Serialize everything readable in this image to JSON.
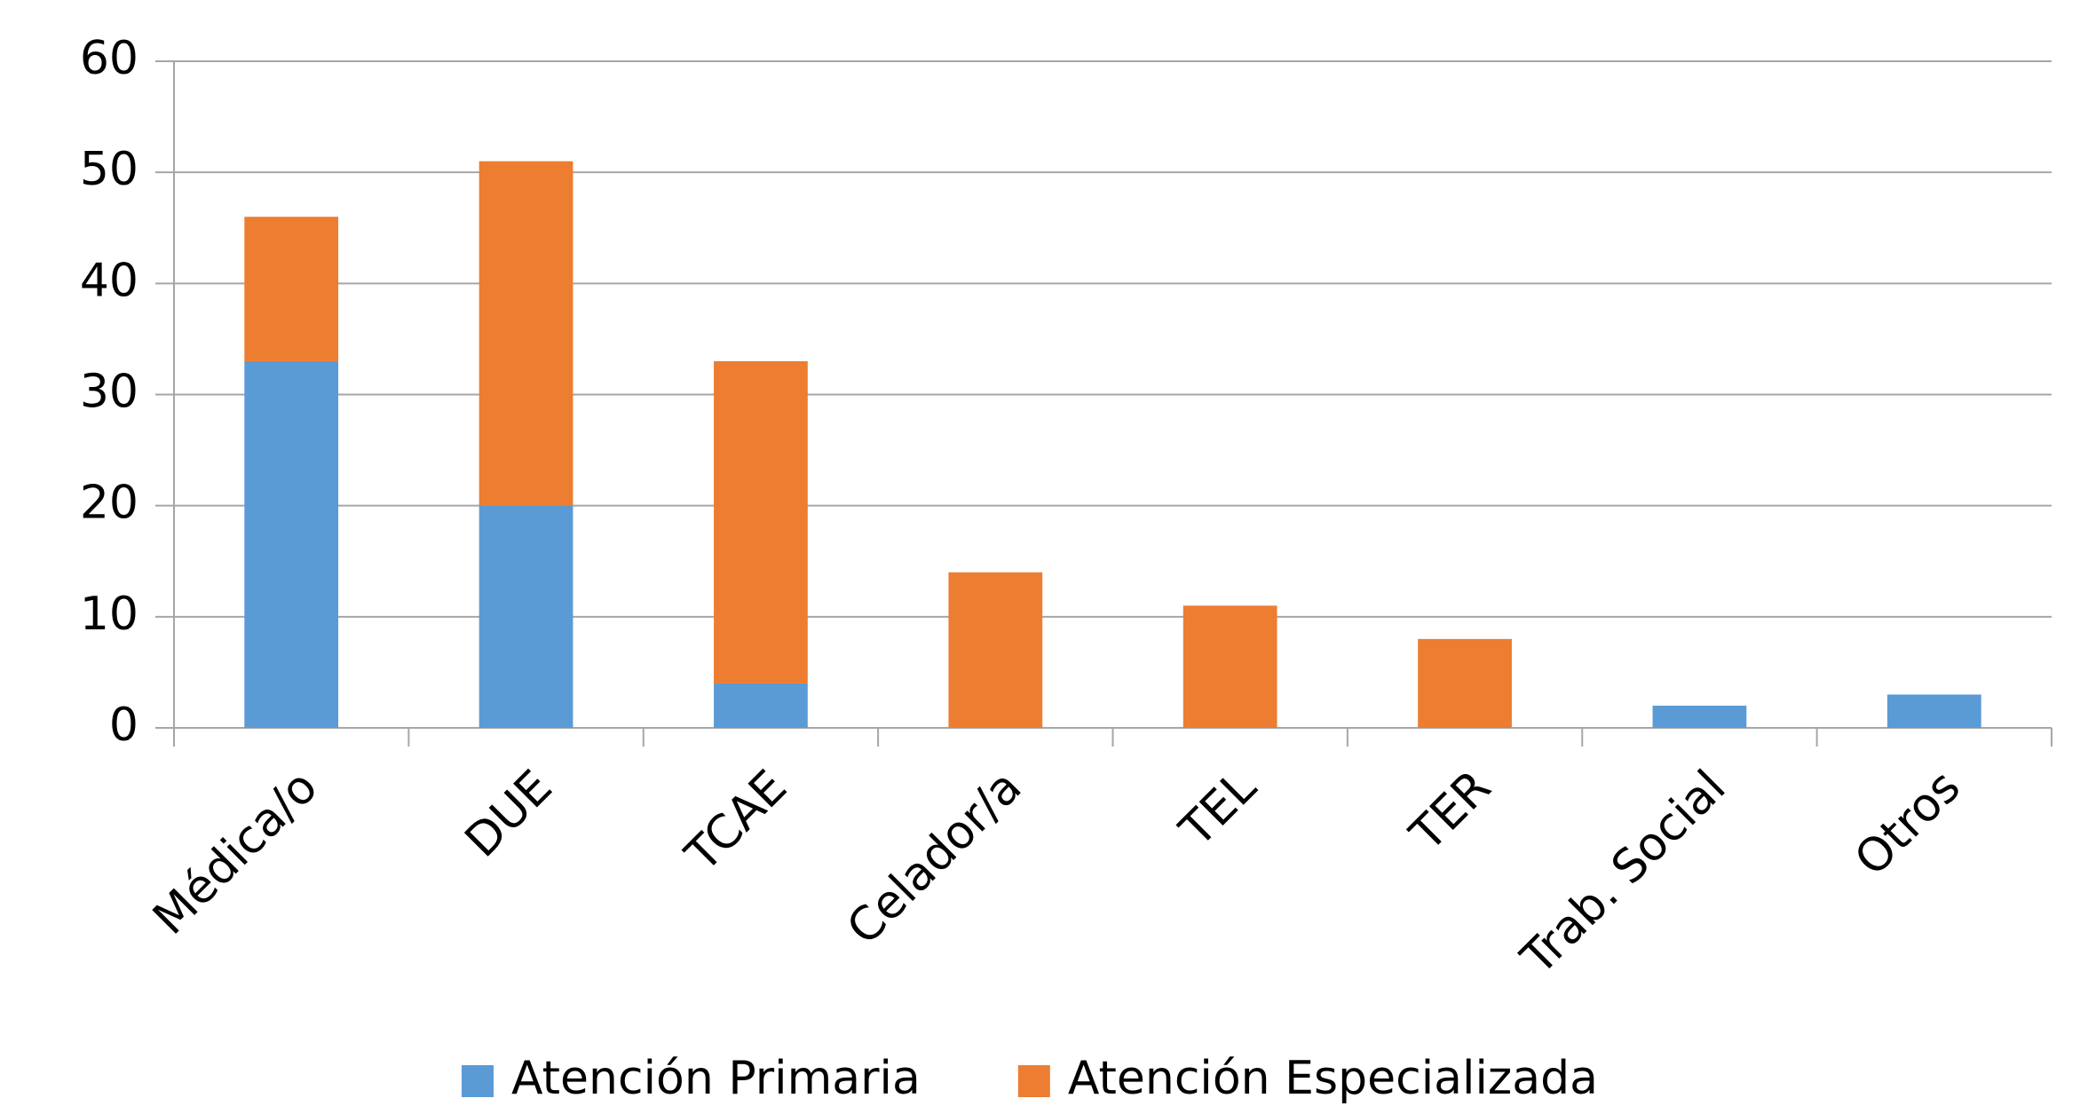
{
  "chart_data": {
    "type": "stacked_bar",
    "categories": [
      "Médica/o",
      "DUE",
      "TCAE",
      "Celador/a",
      "TEL",
      "TER",
      "Trab. Social",
      "Otros"
    ],
    "series": [
      {
        "name": "Atención Primaria",
        "color": "#5b9bd5",
        "values": [
          33,
          20,
          4,
          0,
          0,
          0,
          2,
          3
        ]
      },
      {
        "name": "Atención Especializada",
        "color": "#ed7d31",
        "values": [
          13,
          31,
          29,
          14,
          11,
          8,
          0,
          0
        ]
      }
    ],
    "ylim": [
      0,
      60
    ],
    "yticks": [
      0,
      10,
      20,
      30,
      40,
      50,
      60
    ],
    "grid": true,
    "legend": "bottom"
  }
}
